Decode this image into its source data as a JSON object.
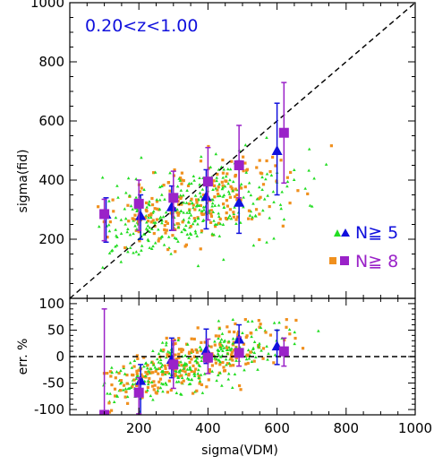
{
  "chart_data": [
    {
      "type": "scatter",
      "panel": "top",
      "xlabel": "",
      "ylabel": "sigma(fid)",
      "xlim": [
        0,
        1000
      ],
      "ylim": [
        0,
        1000
      ],
      "yticks": [
        200,
        400,
        600,
        800,
        1000
      ],
      "annotation": "0.20<z<1.00",
      "annotation_color": "#1010dd",
      "reference_line": "y = x (dashed)",
      "legend": [
        {
          "label": "N≧ 5",
          "marker": "triangle",
          "small_color": "#22dd22",
          "big_color": "#1010dd"
        },
        {
          "label": "N≧ 8",
          "marker": "square",
          "small_color": "#f0901e",
          "big_color": "#9a22c8"
        }
      ],
      "series": [
        {
          "name": "N≧ 5",
          "color": "#1010dd",
          "marker": "triangle",
          "x": [
            105,
            205,
            295,
            395,
            490,
            600
          ],
          "y": [
            285,
            280,
            310,
            345,
            325,
            500
          ],
          "err_low": [
            95,
            80,
            80,
            110,
            105,
            150
          ],
          "err_high": [
            55,
            70,
            70,
            90,
            140,
            160
          ]
        },
        {
          "name": "N≧ 8",
          "color": "#9a22c8",
          "marker": "square",
          "x": [
            100,
            200,
            300,
            400,
            490,
            620
          ],
          "y": [
            285,
            320,
            340,
            395,
            450,
            560
          ],
          "err_low": [
            90,
            90,
            110,
            130,
            110,
            170
          ],
          "err_high": [
            50,
            80,
            90,
            115,
            135,
            170
          ]
        }
      ]
    },
    {
      "type": "scatter",
      "panel": "bottom",
      "xlabel": "sigma(VDM)",
      "ylabel": "err. %",
      "xlim": [
        0,
        1000
      ],
      "ylim": [
        -110,
        110
      ],
      "xticks": [
        200,
        400,
        600,
        800,
        1000
      ],
      "yticks": [
        -100,
        -50,
        0,
        50,
        100
      ],
      "reference_line": "y = 0 (dashed)",
      "series": [
        {
          "name": "N≧ 5",
          "color": "#1010dd",
          "marker": "triangle",
          "x": [
            205,
            295,
            395,
            490,
            600
          ],
          "y": [
            -45,
            -5,
            12,
            33,
            20
          ],
          "err_low": [
            70,
            35,
            25,
            30,
            35
          ],
          "err_high": [
            30,
            40,
            40,
            27,
            30
          ]
        },
        {
          "name": "N≧ 8",
          "color": "#9a22c8",
          "marker": "square",
          "x": [
            100,
            200,
            300,
            400,
            490,
            620
          ],
          "y": [
            -110,
            -68,
            -15,
            -2,
            7,
            10
          ],
          "err_low": [
            10,
            40,
            45,
            30,
            25,
            28
          ],
          "err_high": [
            200,
            28,
            45,
            35,
            30,
            25
          ]
        }
      ]
    }
  ]
}
